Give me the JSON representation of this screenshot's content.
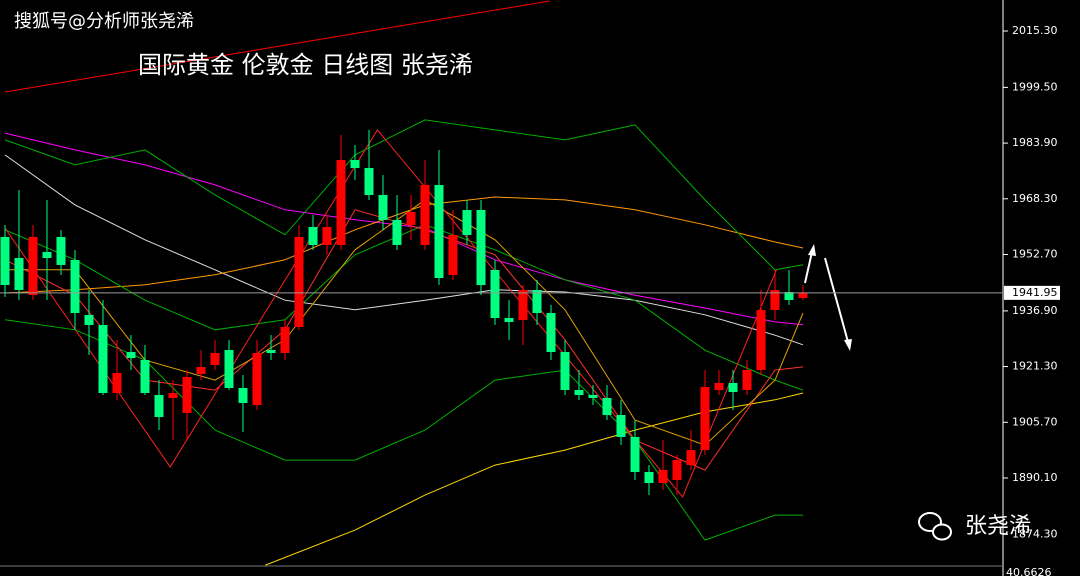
{
  "chart_data": {
    "type": "candlestick",
    "header": "搜狐号@分析师张尧浠",
    "title": "国际黄金 伦敦金 日线图 张尧浠",
    "watermark": "张尧浠",
    "subwindow_label": "40.6626",
    "last_price": 1941.95,
    "ylim": [
      1865.44,
      2023.98
    ],
    "yticks": [
      {
        "value": 2015.3,
        "label": "2015.30"
      },
      {
        "value": 1999.5,
        "label": "1999.50"
      },
      {
        "value": 1983.9,
        "label": "1983.90"
      },
      {
        "value": 1968.3,
        "label": "1968.30"
      },
      {
        "value": 1952.7,
        "label": "1952.70"
      },
      {
        "value": 1936.9,
        "label": "1936.90"
      },
      {
        "value": 1921.3,
        "label": "1921.30"
      },
      {
        "value": 1905.7,
        "label": "1905.70"
      },
      {
        "value": 1890.1,
        "label": "1890.10"
      },
      {
        "value": 1874.3,
        "label": "1874.30"
      }
    ],
    "up_color": "#ff0000",
    "down_color": "#00ff80",
    "open": [
      1957.6,
      1951.71,
      1941.35,
      1953.39,
      1957.6,
      1951.15,
      1935.75,
      1932.95,
      1913.9,
      1925.38,
      1923.14,
      1913.34,
      1912.5,
      1908.3,
      1919.22,
      1921.74,
      1925.94,
      1915.3,
      1910.54,
      1925.94,
      1925.1,
      1932.39,
      1960.4,
      1955.36,
      1955.36,
      1979.16,
      1976.92,
      1969.36,
      1962.36,
      1960.96,
      1955.36,
      1972.16,
      1946.95,
      1965.16,
      1965.16,
      1948.35,
      1934.91,
      1934.35,
      1942.75,
      1936.31,
      1925.38,
      1914.74,
      1913.34,
      1912.5,
      1907.74,
      1901.58,
      1891.77,
      1888.69,
      1889.53,
      1893.73,
      1897.93,
      1914.74,
      1916.7,
      1914.74,
      1920.34,
      1937.15,
      1942.19,
      1940.51
    ],
    "high": [
      1960.96,
      1970.76,
      1960.96,
      1967.96,
      1959.56,
      1953.95,
      1942.75,
      1939.95,
      1928.75,
      1930.15,
      1927.35,
      1917.54,
      1917.54,
      1920.34,
      1925.94,
      1928.75,
      1928.75,
      1918.94,
      1928.75,
      1930.15,
      1934.35,
      1960.96,
      1963.76,
      1963.76,
      1986.17,
      1983.37,
      1987.57,
      1974.96,
      1969.36,
      1969.36,
      1979.16,
      1981.96,
      1965.16,
      1967.96,
      1967.96,
      1951.15,
      1939.95,
      1944.15,
      1945.55,
      1938.55,
      1928.75,
      1920.34,
      1916.14,
      1916.14,
      1911.94,
      1906.34,
      1893.73,
      1900.74,
      1896.53,
      1903.54,
      1920.34,
      1920.34,
      1920.34,
      1923.14,
      1942.75,
      1948.35,
      1948.35,
      1944.15
    ],
    "low": [
      1940.79,
      1939.95,
      1939.95,
      1939.95,
      1946.95,
      1931.55,
      1924.54,
      1913.34,
      1911.94,
      1920.34,
      1913.34,
      1903.54,
      1900.74,
      1900.74,
      1917.54,
      1920.34,
      1914.74,
      1902.98,
      1909.14,
      1923.14,
      1923.14,
      1931.55,
      1953.95,
      1952.55,
      1953.95,
      1973.56,
      1967.96,
      1959.56,
      1953.95,
      1956.76,
      1953.95,
      1944.15,
      1945.55,
      1955.36,
      1941.35,
      1932.95,
      1928.75,
      1927.35,
      1932.95,
      1923.14,
      1913.34,
      1911.94,
      1910.54,
      1906.34,
      1899.34,
      1889.53,
      1885.33,
      1886.73,
      1885.33,
      1892.33,
      1896.53,
      1913.34,
      1909.14,
      1913.34,
      1918.94,
      1934.35,
      1938.55,
      1939.95
    ],
    "close": [
      1944.15,
      1942.75,
      1957.6,
      1951.71,
      1949.75,
      1936.31,
      1932.95,
      1913.9,
      1919.5,
      1923.7,
      1913.9,
      1907.18,
      1913.9,
      1918.38,
      1921.18,
      1925.1,
      1915.3,
      1911.1,
      1925.1,
      1925.1,
      1932.39,
      1957.6,
      1955.36,
      1960.4,
      1979.16,
      1976.92,
      1969.36,
      1962.36,
      1955.36,
      1964.6,
      1972.16,
      1946.11,
      1958.16,
      1958.16,
      1944.15,
      1934.91,
      1933.79,
      1942.75,
      1936.31,
      1925.38,
      1914.74,
      1913.34,
      1912.5,
      1907.74,
      1901.58,
      1891.77,
      1888.69,
      1892.33,
      1895.13,
      1897.93,
      1915.58,
      1916.7,
      1914.18,
      1920.34,
      1937.15,
      1942.75,
      1939.95,
      1941.95
    ],
    "lines": [
      {
        "color": "#ff0000",
        "x": [
          0,
          38.9
        ],
        "values": [
          1998.2,
          2023.7
        ]
      },
      {
        "color": "#ff00ff",
        "x": [
          0,
          5,
          10,
          15,
          20,
          25,
          30,
          35,
          40,
          45,
          50,
          55,
          57
        ],
        "values": [
          1986.7,
          1982.0,
          1977.8,
          1972.2,
          1965.2,
          1962.4,
          1960.1,
          1951.2,
          1945.6,
          1941.3,
          1937.7,
          1933.8,
          1933.0
        ]
      },
      {
        "color": "#e0e0e0",
        "x": [
          0,
          5,
          10,
          15,
          20,
          25,
          30,
          35,
          40,
          45,
          50,
          55,
          57
        ],
        "values": [
          1980.6,
          1966.6,
          1956.8,
          1948.4,
          1939.9,
          1937.2,
          1939.9,
          1942.8,
          1942.2,
          1939.9,
          1935.8,
          1930.1,
          1927.4
        ]
      },
      {
        "color": "#ff9900",
        "x": [
          0,
          5,
          10,
          15,
          20,
          25,
          30,
          35,
          40,
          45,
          50,
          55,
          57
        ],
        "values": [
          1941.9,
          1942.8,
          1944.2,
          1947.0,
          1951.2,
          1959.6,
          1966.6,
          1968.8,
          1968.0,
          1965.2,
          1961.0,
          1956.2,
          1954.5
        ]
      },
      {
        "color": "#ffd700",
        "x": [
          18.6,
          25,
          30,
          35,
          40,
          45,
          50,
          55,
          57
        ],
        "values": [
          1865.7,
          1875.5,
          1885.3,
          1893.7,
          1897.9,
          1903.5,
          1908.6,
          1912.0,
          1913.9
        ]
      },
      {
        "color": "#00b000",
        "x": [
          0,
          5,
          10,
          15,
          20,
          25,
          30,
          35,
          40,
          45,
          50,
          55,
          57
        ],
        "values": [
          1984.8,
          1977.8,
          1982.0,
          1969.4,
          1958.2,
          1980.6,
          1990.4,
          1987.6,
          1984.8,
          1989.0,
          1968.0,
          1948.4,
          1949.8
        ]
      },
      {
        "color": "#00b000",
        "x": [
          0,
          5,
          10,
          15,
          20,
          25,
          30,
          35,
          40,
          45,
          50,
          55,
          57
        ],
        "values": [
          1959.6,
          1951.2,
          1939.9,
          1931.6,
          1934.4,
          1952.6,
          1961.0,
          1954.0,
          1945.6,
          1939.9,
          1925.9,
          1917.5,
          1914.7
        ]
      },
      {
        "color": "#00b000",
        "x": [
          0,
          5,
          10,
          15,
          20,
          25,
          30,
          35,
          40,
          45,
          50,
          55,
          57
        ],
        "values": [
          1934.4,
          1931.6,
          1923.1,
          1903.5,
          1895.1,
          1895.1,
          1903.5,
          1917.5,
          1920.3,
          1900.7,
          1872.7,
          1879.7,
          1879.7
        ]
      },
      {
        "color": "#ff3030",
        "x": [
          0,
          5,
          10,
          15,
          20,
          25,
          30,
          35,
          40,
          45,
          50,
          55,
          57
        ],
        "values": [
          1951.2,
          1941.3,
          1917.5,
          1914.7,
          1931.6,
          1965.2,
          1959.6,
          1952.6,
          1928.8,
          1900.7,
          1892.3,
          1920.3,
          1921.2
        ]
      },
      {
        "color": "#e0a000",
        "x": [
          0,
          5,
          10,
          15,
          20,
          25,
          30,
          35,
          40,
          45,
          50,
          55,
          57
        ],
        "values": [
          1948.4,
          1948.4,
          1923.1,
          1917.5,
          1928.8,
          1954.0,
          1968.0,
          1956.8,
          1937.2,
          1906.3,
          1899.3,
          1917.5,
          1936.3
        ]
      },
      {
        "color": "#ff2020",
        "x": [
          0,
          11.8,
          26.6,
          48.4,
          55.1
        ],
        "values": [
          1960.1,
          1893.2,
          1987.6,
          1884.8,
          1948.4
        ]
      }
    ]
  }
}
